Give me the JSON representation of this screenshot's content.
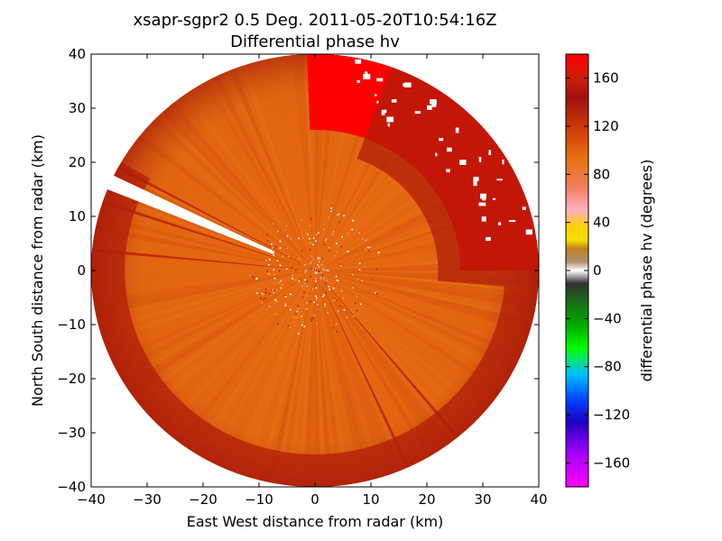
{
  "title_line1": "xsapr-sgpr2 0.5 Deg. 2011-05-20T10:54:16Z",
  "title_line2": "Differential phase hv",
  "chart_data": {
    "type": "heatmap",
    "subtype": "radar-ppi",
    "field": "differential phase hv",
    "xlabel": "East West distance from radar (km)",
    "ylabel": "North South distance from radar (km)",
    "xlim": [
      -40,
      40
    ],
    "ylim": [
      -40,
      40
    ],
    "xticks": [
      "−40",
      "−30",
      "−20",
      "−10",
      "0",
      "10",
      "20",
      "30",
      "40"
    ],
    "yticks": [
      "40",
      "30",
      "20",
      "10",
      "0",
      "−10",
      "−20",
      "−30",
      "−40"
    ],
    "range_km": 40,
    "grid": false,
    "colorbar": {
      "label": "differential phase hv (degrees)",
      "range": [
        -180,
        180
      ],
      "ticks": [
        "160",
        "120",
        "80",
        "40",
        "0",
        "−40",
        "−80",
        "−120",
        "−160"
      ]
    },
    "dominant_value_deg": 130,
    "colors": {
      "dominant": "#e66a12",
      "dark_red": "#b01e08",
      "bright_red": "#ff0000",
      "mid_orange": "#d4540e"
    },
    "regions": [
      {
        "name": "bright-red-sector-north-east",
        "azimuth_from_deg": 358,
        "azimuth_to_deg": 90,
        "min_range_km": 26,
        "value_deg": 175
      },
      {
        "name": "dark-red-band-north-east",
        "azimuth_from_deg": 20,
        "azimuth_to_deg": 95,
        "min_range_km": 22,
        "value_deg": 160
      },
      {
        "name": "dark-red-rim",
        "azimuth_from_deg": 95,
        "azimuth_to_deg": 300,
        "min_range_km": 34,
        "value_deg": 155
      },
      {
        "name": "no-data-wedge-west-north-west",
        "azimuth_from_deg": 292,
        "azimuth_to_deg": 296,
        "min_range_km": 8,
        "value_deg": null
      }
    ]
  }
}
